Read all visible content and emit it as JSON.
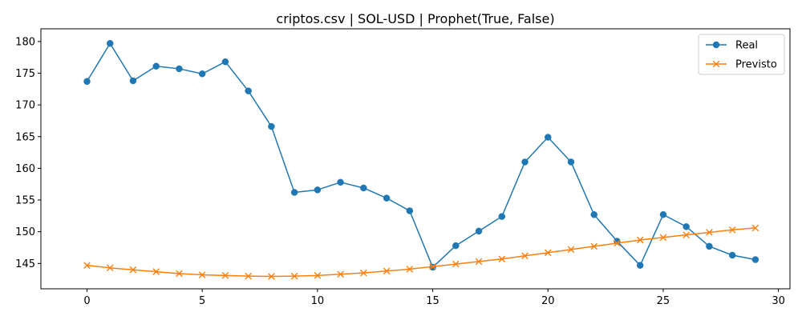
{
  "chart_data": {
    "type": "line",
    "title": "criptos.csv | SOL-USD | Prophet(True, False)",
    "xlabel": "",
    "ylabel": "",
    "xlim": [
      -2,
      30.5
    ],
    "ylim": [
      141,
      182
    ],
    "xticks": [
      0,
      5,
      10,
      15,
      20,
      25,
      30
    ],
    "yticks": [
      145,
      150,
      155,
      160,
      165,
      170,
      175,
      180
    ],
    "grid": false,
    "legend_position": "top-right",
    "x": [
      0,
      1,
      2,
      3,
      4,
      5,
      6,
      7,
      8,
      9,
      10,
      11,
      12,
      13,
      14,
      15,
      16,
      17,
      18,
      19,
      20,
      21,
      22,
      23,
      24,
      25,
      26,
      27,
      28,
      29
    ],
    "series": [
      {
        "name": "Real",
        "color": "#1f77b4",
        "marker": "circle",
        "values": [
          173.7,
          179.7,
          173.8,
          176.1,
          175.7,
          174.9,
          176.8,
          172.2,
          166.6,
          156.2,
          156.6,
          157.8,
          156.9,
          155.3,
          153.3,
          144.4,
          147.8,
          150.1,
          152.4,
          161.0,
          164.9,
          161.0,
          152.7,
          148.5,
          144.7,
          152.7,
          150.8,
          147.7,
          146.3,
          145.6
        ]
      },
      {
        "name": "Previsto",
        "color": "#ff7f0e",
        "marker": "x",
        "values": [
          144.7,
          144.3,
          144.0,
          143.7,
          143.4,
          143.2,
          143.1,
          143.0,
          142.95,
          143.0,
          143.1,
          143.3,
          143.5,
          143.8,
          144.1,
          144.5,
          144.9,
          145.3,
          145.7,
          146.2,
          146.7,
          147.2,
          147.7,
          148.2,
          148.7,
          149.1,
          149.5,
          149.9,
          150.3,
          150.6
        ]
      }
    ]
  }
}
